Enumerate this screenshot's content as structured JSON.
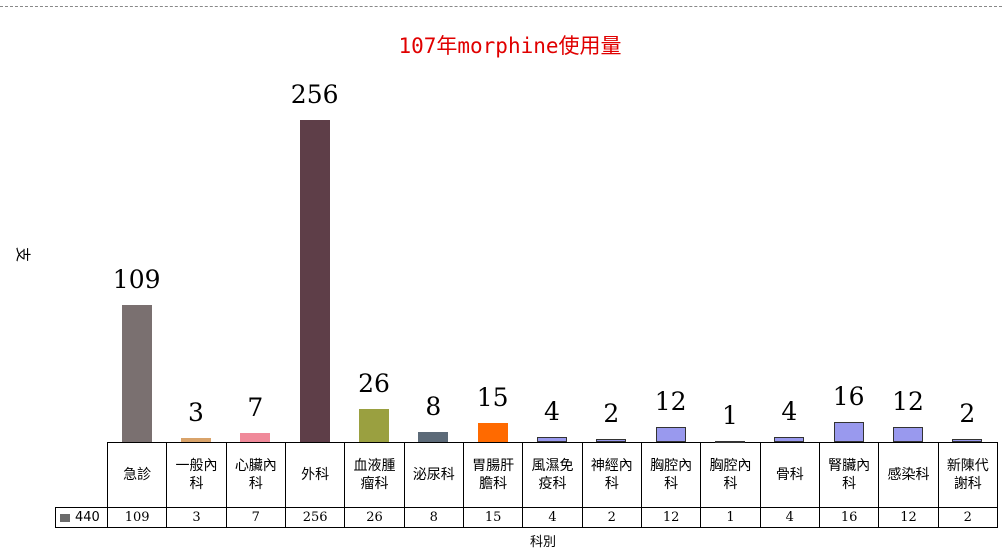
{
  "chart_data": {
    "type": "bar",
    "title": "107年morphine使用量",
    "y_label": "支",
    "x_label": "科別",
    "categories": [
      "急診",
      "一般內科",
      "心臟內科",
      "外科",
      "血液腫瘤科",
      "泌尿科",
      "胃腸肝膽科",
      "風濕免疫科",
      "神經內科",
      "胸腔內科",
      "胸腔內科",
      "骨科",
      "腎臟內科",
      "感染科",
      "新陳代謝科"
    ],
    "series": [
      {
        "name": "440",
        "color": "#6b6b6b",
        "values": [
          109,
          3,
          7,
          256,
          26,
          8,
          15,
          4,
          2,
          12,
          1,
          4,
          16,
          12,
          2
        ],
        "colors": [
          "#7a7070",
          "#d9a36a",
          "#f08a9a",
          "#5e3e48",
          "#9aa040",
          "#5c6a78",
          "#ff6a00",
          "#9999ee",
          "#9999ee",
          "#9999ee",
          "#9999ee",
          "#9999ee",
          "#9999ee",
          "#9999ee",
          "#9999ee"
        ]
      }
    ],
    "ylim": [
      0,
      280
    ]
  }
}
